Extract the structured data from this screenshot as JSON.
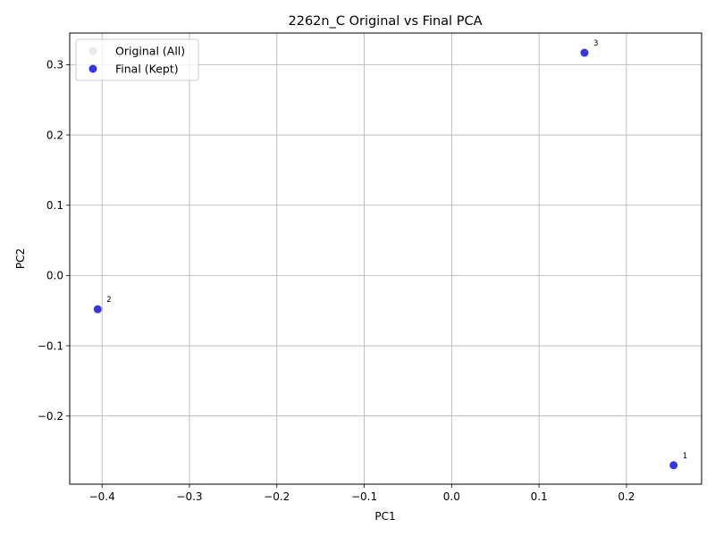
{
  "chart_data": {
    "type": "scatter",
    "title": "2262n_C Original vs Final PCA",
    "xlabel": "PC1",
    "ylabel": "PC2",
    "xlim": [
      -0.437,
      0.286
    ],
    "ylim": [
      -0.297,
      0.345
    ],
    "xticks": [
      -0.4,
      -0.3,
      -0.2,
      -0.1,
      0.0,
      0.1,
      0.2
    ],
    "xtick_labels": [
      "−0.4",
      "−0.3",
      "−0.2",
      "−0.1",
      "0.0",
      "0.1",
      "0.2"
    ],
    "yticks": [
      -0.2,
      -0.1,
      0.0,
      0.1,
      0.2,
      0.3
    ],
    "ytick_labels": [
      "−0.2",
      "−0.1",
      "0.0",
      "0.1",
      "0.2",
      "0.3"
    ],
    "grid": true,
    "legend_position": "top-left",
    "series": [
      {
        "name": "Original (All)",
        "color": "#d9d9d9",
        "points": []
      },
      {
        "name": "Final (Kept)",
        "color": "#0000ee",
        "points": [
          {
            "x": 0.254,
            "y": -0.27,
            "label": "1"
          },
          {
            "x": -0.405,
            "y": -0.048,
            "label": "2"
          },
          {
            "x": 0.152,
            "y": 0.317,
            "label": "3"
          }
        ]
      }
    ]
  }
}
